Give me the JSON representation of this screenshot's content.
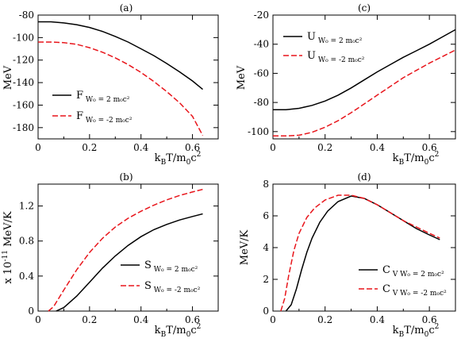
{
  "chart_data": [
    {
      "panel": "(a)",
      "type": "line",
      "ylabel": "MeV",
      "xlabel": "k_B T/m_0 c^2",
      "xlim": [
        0,
        0.7
      ],
      "ylim": [
        -190,
        -80
      ],
      "xticks": [
        0,
        0.2,
        0.4,
        0.6
      ],
      "xtick_labels": [
        "0",
        "0.2",
        "0.4",
        "0.6"
      ],
      "yticks": [
        -80,
        -100,
        -120,
        -140,
        -160,
        -180
      ],
      "ytick_labels": [
        "-80",
        "-100",
        "-120",
        "-140",
        "-160",
        "-180"
      ],
      "legend": "bottom-left",
      "series": [
        {
          "name": "F",
          "subscript": "W₀ = 2 m₀c²",
          "color": "#000000",
          "dash": "solid",
          "x": [
            0,
            0.05,
            0.1,
            0.15,
            0.2,
            0.25,
            0.3,
            0.35,
            0.4,
            0.45,
            0.5,
            0.55,
            0.6,
            0.64
          ],
          "y": [
            -86,
            -86,
            -87,
            -88.5,
            -91,
            -94.5,
            -99,
            -104,
            -110,
            -116,
            -123,
            -130.5,
            -138.5,
            -146
          ]
        },
        {
          "name": "F",
          "subscript": "W₀ = -2 m₀c²",
          "color": "#e8151b",
          "dash": "dashed",
          "x": [
            0,
            0.05,
            0.1,
            0.15,
            0.2,
            0.25,
            0.3,
            0.35,
            0.4,
            0.45,
            0.5,
            0.55,
            0.6,
            0.64
          ],
          "y": [
            -104,
            -104,
            -104.5,
            -106,
            -109,
            -113,
            -118,
            -124,
            -131,
            -139,
            -148,
            -158,
            -170,
            -187
          ]
        }
      ]
    },
    {
      "panel": "(c)",
      "type": "line",
      "ylabel": "MeV",
      "xlabel": "k_B T/m_0 c^2",
      "xlim": [
        0,
        0.7
      ],
      "ylim": [
        -105,
        -20
      ],
      "xticks": [
        0,
        0.2,
        0.4,
        0.6
      ],
      "xtick_labels": [
        "0",
        "0.2",
        "0.4",
        "0.6"
      ],
      "yticks": [
        -20,
        -40,
        -60,
        -80,
        -100
      ],
      "ytick_labels": [
        "-20",
        "-40",
        "-60",
        "-80",
        "-100"
      ],
      "legend": "top-left",
      "series": [
        {
          "name": "U",
          "subscript": "W₀ = 2 m₀c²",
          "color": "#000000",
          "dash": "solid",
          "x": [
            0,
            0.05,
            0.1,
            0.15,
            0.2,
            0.25,
            0.3,
            0.35,
            0.4,
            0.45,
            0.5,
            0.55,
            0.6,
            0.65,
            0.7
          ],
          "y": [
            -85,
            -85,
            -84,
            -82,
            -79,
            -75,
            -70,
            -64.5,
            -59,
            -54,
            -49,
            -44.5,
            -40,
            -35,
            -30
          ]
        },
        {
          "name": "U",
          "subscript": "W₀ = -2 m₀c²",
          "color": "#e8151b",
          "dash": "dashed",
          "x": [
            0,
            0.05,
            0.1,
            0.15,
            0.2,
            0.25,
            0.3,
            0.35,
            0.4,
            0.45,
            0.5,
            0.55,
            0.6,
            0.65,
            0.7
          ],
          "y": [
            -103,
            -103,
            -102.5,
            -100.5,
            -97,
            -92.5,
            -87,
            -81,
            -75,
            -69,
            -63,
            -58,
            -53,
            -48.5,
            -44
          ]
        }
      ]
    },
    {
      "panel": "(b)",
      "type": "line",
      "ylabel": "x 10⁻¹¹ MeV/K",
      "xlabel": "k_B T/m_0 c^2",
      "xlim": [
        0,
        0.7
      ],
      "ylim": [
        0,
        1.45
      ],
      "xticks": [
        0,
        0.2,
        0.4,
        0.6
      ],
      "xtick_labels": [
        "0",
        "0.2",
        "0.4",
        "0.6"
      ],
      "yticks": [
        0,
        0.4,
        0.8,
        1.2
      ],
      "ytick_labels": [
        "0",
        "0.4",
        "0.8",
        "1.2"
      ],
      "legend": "bottom-right",
      "series": [
        {
          "name": "S",
          "subscript": "W₀ = 2 m₀c²",
          "color": "#000000",
          "dash": "solid",
          "x": [
            0.07,
            0.1,
            0.15,
            0.2,
            0.25,
            0.3,
            0.35,
            0.4,
            0.45,
            0.5,
            0.55,
            0.6,
            0.64
          ],
          "y": [
            0,
            0.04,
            0.17,
            0.33,
            0.49,
            0.63,
            0.75,
            0.85,
            0.93,
            0.99,
            1.04,
            1.08,
            1.11
          ]
        },
        {
          "name": "S",
          "subscript": "W₀ = -2 m₀c²",
          "color": "#e8151b",
          "dash": "dashed",
          "x": [
            0.04,
            0.06,
            0.1,
            0.15,
            0.2,
            0.25,
            0.3,
            0.35,
            0.4,
            0.45,
            0.5,
            0.55,
            0.6,
            0.64
          ],
          "y": [
            0,
            0.05,
            0.24,
            0.47,
            0.67,
            0.83,
            0.96,
            1.06,
            1.14,
            1.21,
            1.27,
            1.32,
            1.36,
            1.39
          ]
        }
      ]
    },
    {
      "panel": "(d)",
      "type": "line",
      "ylabel": "MeV/K",
      "xlabel": "k_B T/m_0 c^2",
      "xlim": [
        0,
        0.7
      ],
      "ylim": [
        0,
        8
      ],
      "xticks": [
        0,
        0.2,
        0.4,
        0.6
      ],
      "xtick_labels": [
        "0",
        "0.2",
        "0.4",
        "0.6"
      ],
      "yticks": [
        0,
        2,
        4,
        6,
        8
      ],
      "ytick_labels": [
        "0",
        "2",
        "4",
        "6",
        "8"
      ],
      "legend": "bottom-right",
      "series": [
        {
          "name": "C",
          "subscript": "V W₀ = 2 m₀c²",
          "color": "#000000",
          "dash": "solid",
          "x": [
            0.05,
            0.07,
            0.09,
            0.11,
            0.13,
            0.15,
            0.18,
            0.21,
            0.25,
            0.3,
            0.35,
            0.4,
            0.45,
            0.5,
            0.55,
            0.6,
            0.64
          ],
          "y": [
            0,
            0.4,
            1.4,
            2.6,
            3.7,
            4.6,
            5.6,
            6.3,
            6.9,
            7.25,
            7.1,
            6.7,
            6.2,
            5.7,
            5.2,
            4.8,
            4.5
          ]
        },
        {
          "name": "C",
          "subscript": "V W₀ = -2 m₀c²",
          "color": "#e8151b",
          "dash": "dashed",
          "x": [
            0.03,
            0.045,
            0.06,
            0.08,
            0.1,
            0.13,
            0.16,
            0.2,
            0.25,
            0.3,
            0.35,
            0.4,
            0.45,
            0.5,
            0.55,
            0.6,
            0.64
          ],
          "y": [
            0,
            0.8,
            2.2,
            3.8,
            4.9,
            5.9,
            6.5,
            7.0,
            7.3,
            7.3,
            7.1,
            6.7,
            6.2,
            5.7,
            5.3,
            4.9,
            4.6
          ]
        }
      ]
    }
  ]
}
